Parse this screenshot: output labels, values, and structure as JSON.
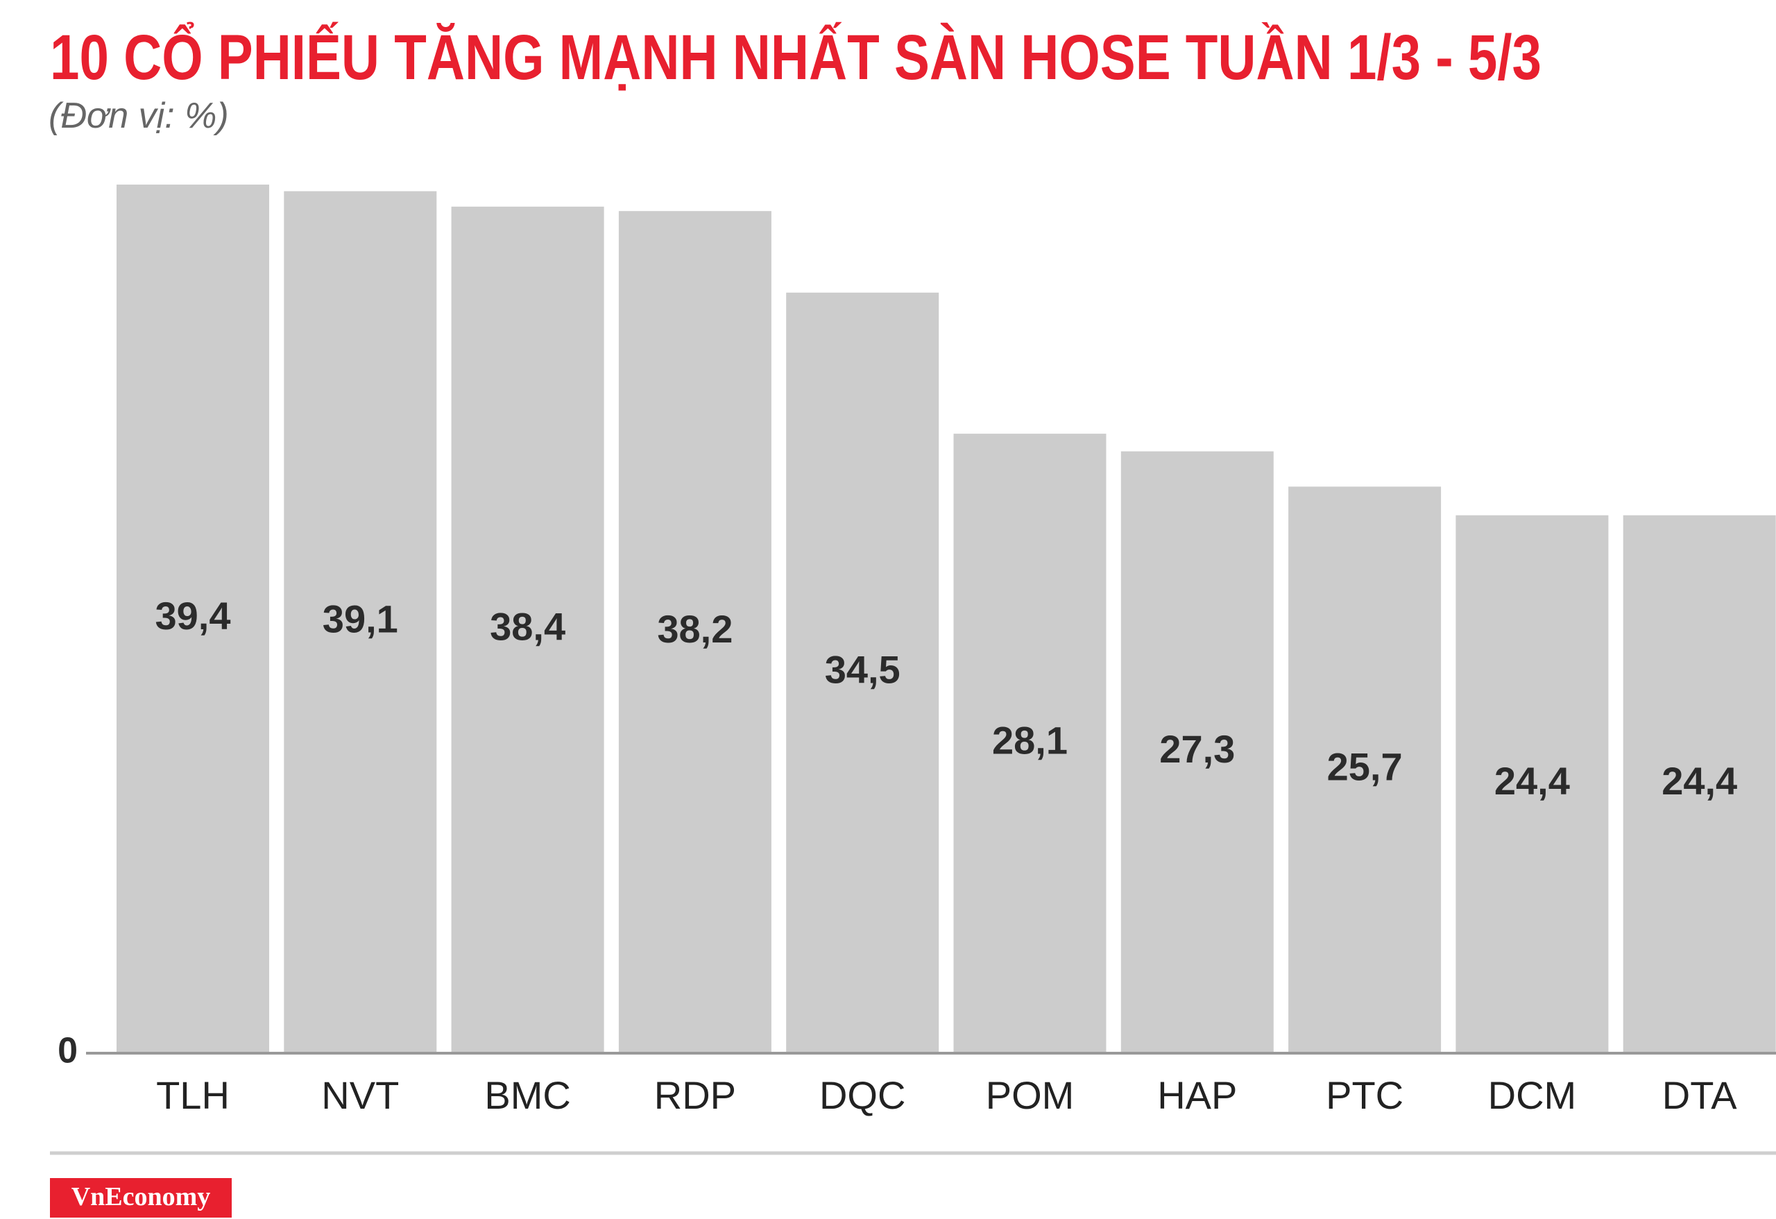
{
  "chart_data": {
    "type": "bar",
    "title": "10 CỔ PHIẾU TĂNG MẠNH NHẤT SÀN HOSE TUẦN 1/3 - 5/3",
    "subtitle": "(Đơn vị: %)",
    "categories": [
      "TLH",
      "NVT",
      "BMC",
      "RDP",
      "DQC",
      "POM",
      "HAP",
      "PTC",
      "DCM",
      "DTA"
    ],
    "values": [
      39.4,
      39.1,
      38.4,
      38.2,
      34.5,
      28.1,
      27.3,
      25.7,
      24.4,
      24.4
    ],
    "value_labels": [
      "39,4",
      "39,1",
      "38,4",
      "38,2",
      "34,5",
      "28,1",
      "27,3",
      "25,7",
      "24,4",
      "24,4"
    ],
    "color": "#cccccc",
    "ylim": [
      0,
      40
    ],
    "yticks": [
      0
    ],
    "source": "VnEconomy"
  }
}
